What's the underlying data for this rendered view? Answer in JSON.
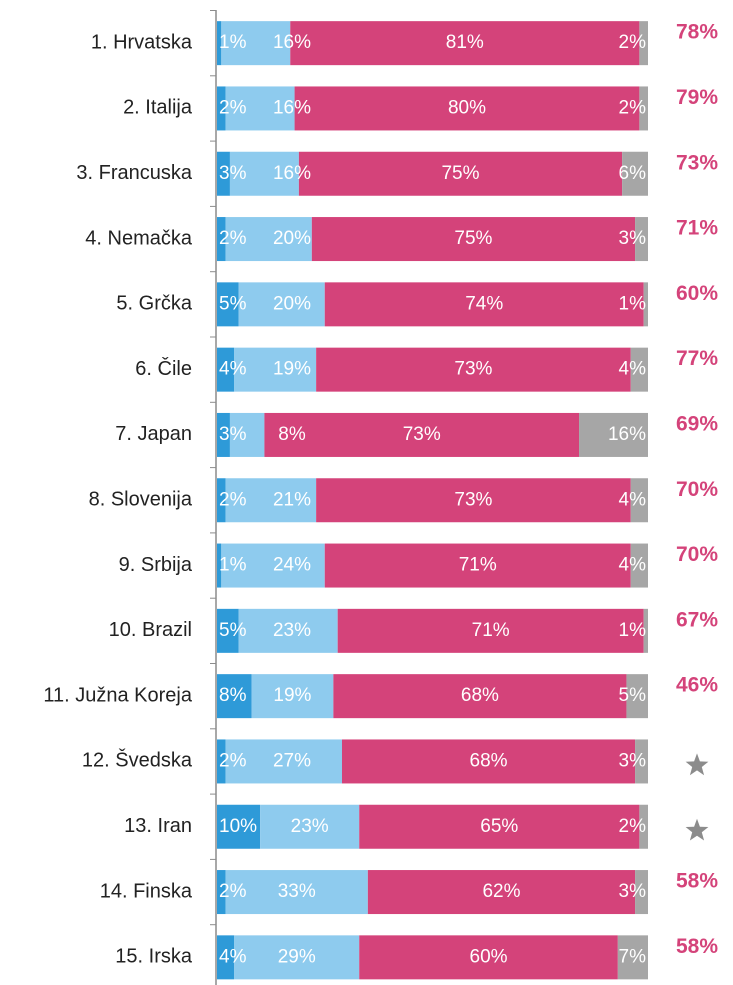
{
  "chart_data": {
    "type": "stacked-bar-horizontal",
    "categories": [
      "1. Hrvatska",
      "2. Italija",
      "3. Francuska",
      "4. Nemačka",
      "5. Grčka",
      "6. Čile",
      "7. Japan",
      "8. Slovenija",
      "9. Srbija",
      "10. Brazil",
      "11. Južna Koreja",
      "12. Švedska",
      "13. Iran",
      "14. Finska",
      "15. Irska"
    ],
    "series": [
      {
        "color": "#2e9ad8",
        "values": [
          1,
          2,
          3,
          2,
          5,
          4,
          3,
          2,
          1,
          5,
          8,
          2,
          10,
          2,
          4
        ],
        "value_labels": [
          "1%",
          "2%",
          "3%",
          "2%",
          "5%",
          "4%",
          "3%",
          "2%",
          "1%",
          "5%",
          "8%",
          "2%",
          "10%",
          "2%",
          "4%"
        ]
      },
      {
        "color": "#8ecbee",
        "values": [
          16,
          16,
          16,
          20,
          20,
          19,
          8,
          21,
          24,
          23,
          19,
          27,
          23,
          33,
          29
        ],
        "value_labels": [
          "16%",
          "16%",
          "16%",
          "20%",
          "20%",
          "19%",
          "8%",
          "21%",
          "24%",
          "23%",
          "19%",
          "27%",
          "23%",
          "33%",
          "29%"
        ]
      },
      {
        "color": "#d4437a",
        "values": [
          81,
          80,
          75,
          75,
          74,
          73,
          73,
          73,
          71,
          71,
          68,
          68,
          65,
          62,
          60
        ],
        "value_labels": [
          "81%",
          "80%",
          "75%",
          "75%",
          "74%",
          "73%",
          "73%",
          "73%",
          "71%",
          "71%",
          "68%",
          "68%",
          "65%",
          "62%",
          "60%"
        ]
      },
      {
        "color": "#a6a6a6",
        "values": [
          2,
          2,
          6,
          3,
          1,
          4,
          16,
          4,
          4,
          1,
          5,
          3,
          2,
          3,
          7
        ],
        "value_labels": [
          "2%",
          "2%",
          "6%",
          "3%",
          "1%",
          "4%",
          "16%",
          "4%",
          "4%",
          "1%",
          "5%",
          "3%",
          "2%",
          "3%",
          "7%"
        ]
      }
    ],
    "side_values": [
      78,
      79,
      73,
      71,
      60,
      77,
      69,
      70,
      70,
      67,
      46,
      null,
      null,
      58,
      58
    ],
    "side_value_labels": [
      "78%",
      "79%",
      "73%",
      "71%",
      "60%",
      "77%",
      "69%",
      "70%",
      "70%",
      "67%",
      "46%",
      null,
      null,
      "58%",
      "58%"
    ],
    "side_color": "#d4437a"
  }
}
